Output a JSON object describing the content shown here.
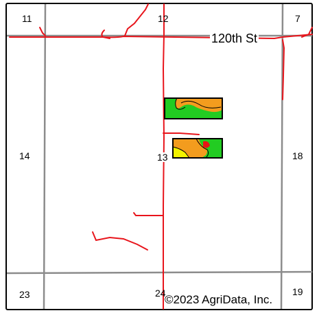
{
  "map": {
    "sections": {
      "s11": "11",
      "s12": "12",
      "s7": "7",
      "s14": "14",
      "s13": "13",
      "s18": "18",
      "s23": "23",
      "s24": "24",
      "s19": "19"
    },
    "road_label": "120th St",
    "copyright": "©2023 AgriData, Inc.",
    "colors": {
      "road": "#e8141b",
      "section_line": "#8c8c8c",
      "zone_green": "#22cc22",
      "zone_orange": "#f39c1e",
      "zone_yellow": "#f4f400",
      "zone_red": "#e81414",
      "outline": "#000000"
    }
  }
}
